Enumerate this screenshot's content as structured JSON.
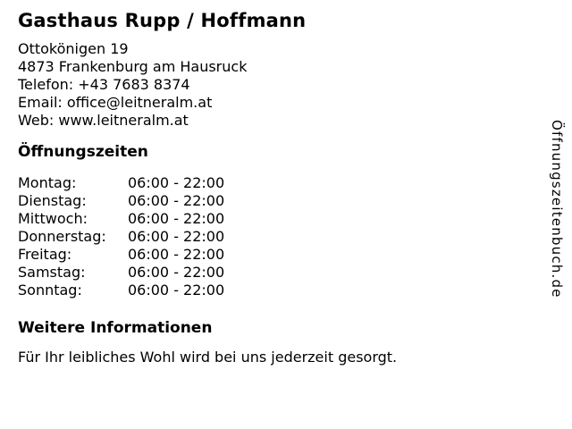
{
  "page": {
    "title": "Gasthaus Rupp / Hoffmann"
  },
  "contact": {
    "street": "Ottokönigen 19",
    "city": "4873 Frankenburg am Hausruck",
    "phone_label": "Telefon:",
    "phone": "+43 7683 8374",
    "email_label": "Email:",
    "email": "office@leitneralm.at",
    "web_label": "Web:",
    "web": "www.leitneralm.at"
  },
  "hours": {
    "heading": "Öffnungszeiten",
    "rows": [
      {
        "day": "Montag:",
        "time": "06:00 - 22:00"
      },
      {
        "day": "Dienstag:",
        "time": "06:00 - 22:00"
      },
      {
        "day": "Mittwoch:",
        "time": "06:00 - 22:00"
      },
      {
        "day": "Donnerstag:",
        "time": "06:00 - 22:00"
      },
      {
        "day": "Freitag:",
        "time": "06:00 - 22:00"
      },
      {
        "day": "Samstag:",
        "time": "06:00 - 22:00"
      },
      {
        "day": "Sonntag:",
        "time": "06:00 - 22:00"
      }
    ]
  },
  "info": {
    "heading": "Weitere Informationen",
    "text": "Für Ihr leibliches Wohl wird bei uns jederzeit gesorgt."
  },
  "watermark": {
    "text": "Öffnungszeitenbuch.de"
  },
  "colors": {
    "text": "#000000",
    "background": "#ffffff"
  }
}
